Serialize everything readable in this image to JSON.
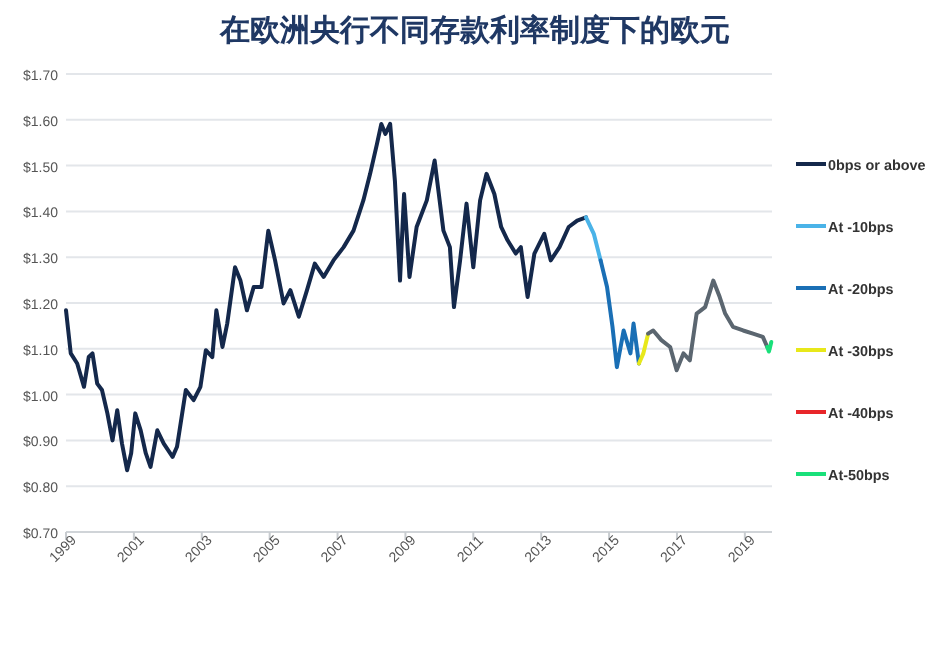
{
  "chart_data": {
    "type": "line",
    "title": "在欧洲央行不同存款利率制度下的欧元",
    "xlim": [
      1999,
      2019.8
    ],
    "xticks": [
      1999,
      2001,
      2003,
      2005,
      2007,
      2009,
      2011,
      2013,
      2015,
      2017,
      2019
    ],
    "ylim": [
      0.7,
      1.7
    ],
    "yticks": [
      {
        "value": 0.7,
        "label": "$0.70"
      },
      {
        "value": 0.8,
        "label": "$0.80"
      },
      {
        "value": 0.9,
        "label": "$0.90"
      },
      {
        "value": 1.0,
        "label": "$1.00"
      },
      {
        "value": 1.1,
        "label": "$1.10"
      },
      {
        "value": 1.2,
        "label": "$1.20"
      },
      {
        "value": 1.3,
        "label": "$1.30"
      },
      {
        "value": 1.4,
        "label": "$1.40"
      },
      {
        "value": 1.5,
        "label": "$1.50"
      },
      {
        "value": 1.6,
        "label": "$1.60"
      },
      {
        "value": 1.7,
        "label": "$1.70"
      }
    ],
    "grid": "y",
    "legend": "right",
    "series": [
      {
        "name": "0bps or above",
        "color": "#14284b",
        "x": [
          1999.0,
          1999.14,
          1999.33,
          1999.53,
          1999.67,
          1999.78,
          1999.92,
          2000.06,
          2000.22,
          2000.37,
          2000.51,
          2000.65,
          2000.8,
          2000.92,
          2001.04,
          2001.2,
          2001.35,
          2001.49,
          2001.69,
          2001.88,
          2002.14,
          2002.27,
          2002.53,
          2002.76,
          2002.96,
          2003.12,
          2003.31,
          2003.43,
          2003.61,
          2003.75,
          2003.98,
          2004.14,
          2004.33,
          2004.53,
          2004.76,
          2004.96,
          2005.16,
          2005.41,
          2005.61,
          2005.86,
          2006.1,
          2006.33,
          2006.59,
          2006.88,
          2007.18,
          2007.47,
          2007.76,
          2007.96,
          2008.16,
          2008.29,
          2008.41,
          2008.55,
          2008.69,
          2008.84,
          2008.96,
          2009.12,
          2009.33,
          2009.63,
          2009.86,
          2010.12,
          2010.31,
          2010.43,
          2010.61,
          2010.8,
          2011.0,
          2011.2,
          2011.39,
          2011.62,
          2011.82,
          2012.01,
          2012.25,
          2012.4,
          2012.6,
          2012.8,
          2013.09,
          2013.28,
          2013.54,
          2013.81,
          2014.06,
          2014.32
        ],
        "values": [
          1.184,
          1.09,
          1.068,
          1.017,
          1.082,
          1.09,
          1.024,
          1.01,
          0.959,
          0.9,
          0.966,
          0.893,
          0.835,
          0.872,
          0.959,
          0.922,
          0.872,
          0.842,
          0.922,
          0.893,
          0.864,
          0.886,
          1.01,
          0.988,
          1.017,
          1.097,
          1.082,
          1.184,
          1.104,
          1.155,
          1.278,
          1.249,
          1.184,
          1.235,
          1.235,
          1.358,
          1.293,
          1.199,
          1.228,
          1.17,
          1.228,
          1.286,
          1.257,
          1.293,
          1.322,
          1.358,
          1.424,
          1.482,
          1.547,
          1.591,
          1.569,
          1.591,
          1.467,
          1.249,
          1.438,
          1.257,
          1.366,
          1.424,
          1.511,
          1.358,
          1.322,
          1.191,
          1.293,
          1.417,
          1.278,
          1.424,
          1.482,
          1.438,
          1.366,
          1.337,
          1.308,
          1.322,
          1.213,
          1.308,
          1.351,
          1.293,
          1.322,
          1.366,
          1.38,
          1.387
        ]
      },
      {
        "name": "At -10bps",
        "color": "#4ab3e8",
        "x": [
          2014.32,
          2014.55,
          2014.75
        ],
        "values": [
          1.387,
          1.351,
          1.293
        ]
      },
      {
        "name": "At -20bps",
        "color": "#1a6fb5",
        "x": [
          2014.75,
          2014.94,
          2015.1,
          2015.23,
          2015.43,
          2015.63,
          2015.72,
          2015.88
        ],
        "values": [
          1.293,
          1.235,
          1.148,
          1.06,
          1.14,
          1.09,
          1.155,
          1.068
        ]
      },
      {
        "name": "At -30bps",
        "color": "#e8e81a",
        "x": [
          2015.88,
          2016.01,
          2016.15
        ],
        "values": [
          1.068,
          1.09,
          1.133
        ]
      },
      {
        "color": "#5b6670",
        "x": [
          2016.15,
          2016.3,
          2016.54,
          2016.8,
          2016.99,
          2017.19,
          2017.38,
          2017.58,
          2017.83,
          2018.07,
          2018.26,
          2018.42,
          2018.65,
          2018.95,
          2019.24,
          2019.53,
          2019.66
        ],
        "values": [
          1.133,
          1.14,
          1.119,
          1.104,
          1.053,
          1.09,
          1.075,
          1.177,
          1.191,
          1.249,
          1.213,
          1.177,
          1.148,
          1.14,
          1.133,
          1.126,
          1.104
        ]
      },
      {
        "name": "At -40bps",
        "color": "#e8262a"
      },
      {
        "name": "At-50bps",
        "color": "#19e07a",
        "x": [
          2019.66,
          2019.71,
          2019.78
        ],
        "values": [
          1.104,
          1.094,
          1.115
        ]
      }
    ]
  }
}
